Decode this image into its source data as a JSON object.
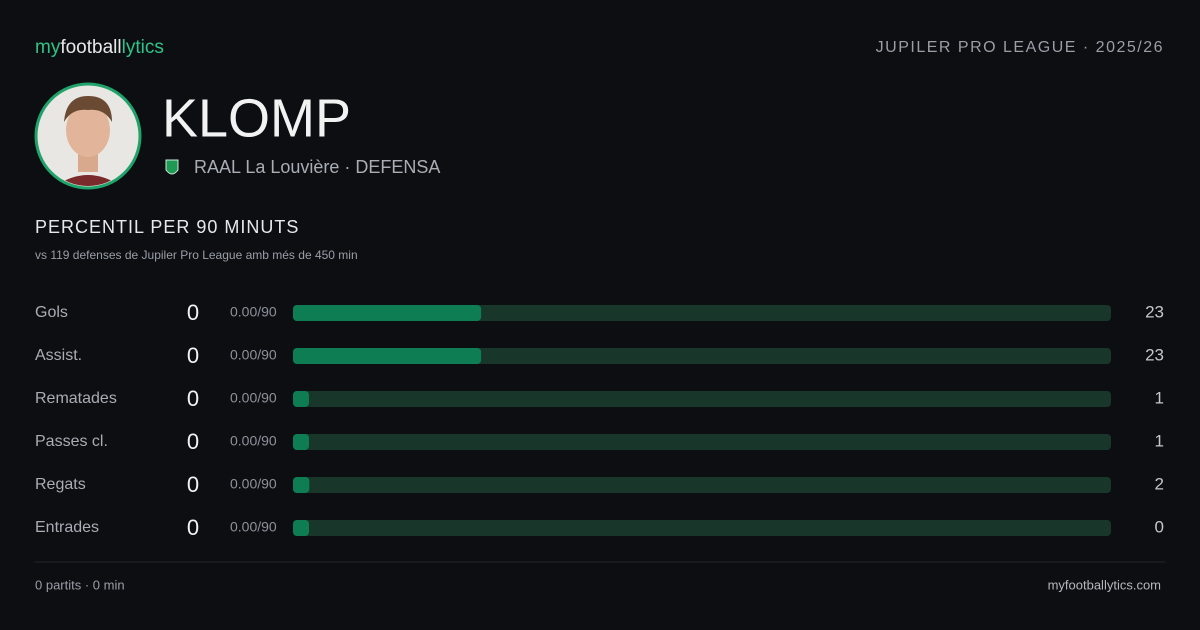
{
  "header": {
    "logo": [
      "my",
      "football",
      "lytics"
    ],
    "league": "JUPILER PRO LEAGUE · 2025/26"
  },
  "player": {
    "name": "KLOMP",
    "club": "RAAL La Louvière · DEFENSA"
  },
  "section": {
    "title": "PERCENTIL PER 90 MINUTS",
    "subtitle": "vs 119 defenses de Jupiler Pro League amb més de 450 min"
  },
  "scale": [
    0,
    100
  ],
  "metrics": [
    {
      "label": "Gols",
      "value": "0",
      "per90": "0.00/90",
      "percentile": 23
    },
    {
      "label": "Assist.",
      "value": "0",
      "per90": "0.00/90",
      "percentile": 23
    },
    {
      "label": "Rematades",
      "value": "0",
      "per90": "0.00/90",
      "percentile": 1
    },
    {
      "label": "Passes cl.",
      "value": "0",
      "per90": "0.00/90",
      "percentile": 1
    },
    {
      "label": "Regats",
      "value": "0",
      "per90": "0.00/90",
      "percentile": 2
    },
    {
      "label": "Entrades",
      "value": "0",
      "per90": "0.00/90",
      "percentile": 0
    }
  ],
  "footer": {
    "stats": "0 partits · 0 min",
    "site": "myfootballytics.com"
  }
}
